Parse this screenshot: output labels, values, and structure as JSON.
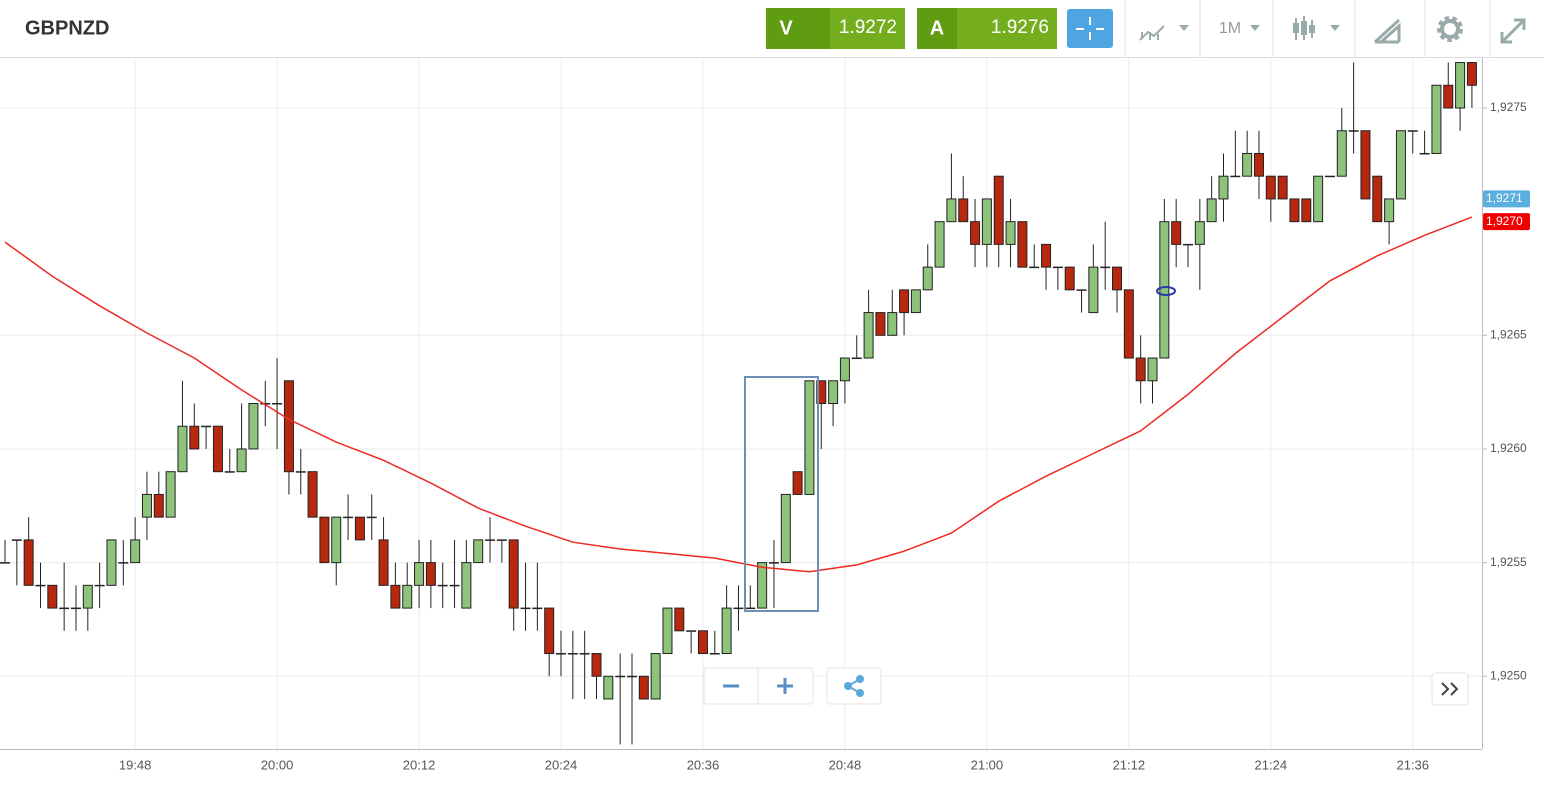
{
  "header": {
    "symbol": "GBPNZD",
    "sell_label": "V",
    "sell_price": "1.9272",
    "buy_label": "A",
    "buy_price": "1.9276",
    "timeframe": "1M"
  },
  "chart_data": {
    "type": "candlestick",
    "categories": [
      null,
      null,
      null,
      null,
      null,
      null,
      null,
      null,
      null,
      null,
      null,
      "19:48",
      null,
      null,
      null,
      null,
      null,
      null,
      null,
      null,
      null,
      null,
      null,
      "20:00",
      null,
      null,
      null,
      null,
      null,
      null,
      null,
      null,
      null,
      null,
      null,
      "20:12",
      null,
      null,
      null,
      null,
      null,
      null,
      null,
      null,
      null,
      null,
      null,
      "20:24",
      null,
      null,
      null,
      null,
      null,
      null,
      null,
      null,
      null,
      null,
      null,
      "20:36",
      null,
      null,
      null,
      null,
      null,
      null,
      null,
      null,
      null,
      null,
      null,
      "20:48",
      null,
      null,
      null,
      null,
      null,
      null,
      null,
      null,
      null,
      null,
      null,
      "21:00",
      null,
      null,
      null,
      null,
      null,
      null,
      null,
      null,
      null,
      null,
      null,
      "21:12",
      null,
      null,
      null,
      null,
      null,
      null,
      null,
      null,
      null,
      null,
      null,
      "21:24",
      null,
      null,
      null,
      null,
      null,
      null,
      null,
      null,
      null,
      null,
      null,
      "21:36",
      null,
      null,
      null,
      null,
      null
    ],
    "open": [
      1.9255,
      1.9256,
      1.9256,
      1.9254,
      1.9254,
      1.9253,
      1.9253,
      1.9253,
      1.9254,
      1.9254,
      1.9255,
      1.9255,
      1.9257,
      1.9258,
      1.9257,
      1.9259,
      1.9261,
      1.9261,
      1.9261,
      1.9259,
      1.9259,
      1.926,
      1.9262,
      1.9262,
      1.9263,
      1.9259,
      1.9259,
      1.9257,
      1.9255,
      1.9257,
      1.9257,
      1.9257,
      1.9256,
      1.9254,
      1.9253,
      1.9254,
      1.9255,
      1.9254,
      1.9254,
      1.9253,
      1.9255,
      1.9256,
      1.9256,
      1.9256,
      1.9253,
      1.9253,
      1.9253,
      1.9251,
      1.9251,
      1.9251,
      1.9251,
      1.9249,
      1.925,
      1.925,
      1.925,
      1.9249,
      1.9251,
      1.9253,
      1.9252,
      1.9252,
      1.9251,
      1.9251,
      1.9253,
      1.9253,
      1.9253,
      1.9255,
      1.9255,
      1.9259,
      1.9258,
      1.9263,
      1.9262,
      1.9263,
      1.9264,
      1.9264,
      1.9266,
      1.9265,
      1.9267,
      1.9266,
      1.9267,
      1.9268,
      1.927,
      1.9271,
      1.927,
      1.9269,
      1.9272,
      1.9269,
      1.927,
      1.9268,
      1.9269,
      1.9268,
      1.9268,
      1.9267,
      1.9266,
      1.9268,
      1.9268,
      1.9267,
      1.9264,
      1.9263,
      1.9264,
      1.927,
      1.9269,
      1.9269,
      1.927,
      1.9271,
      1.9272,
      1.9272,
      1.9273,
      1.9272,
      1.9272,
      1.9271,
      1.9271,
      1.927,
      1.9272,
      1.9272,
      1.9274,
      1.9274,
      1.9272,
      1.927,
      1.9271,
      1.9274,
      1.9273,
      1.9273,
      1.9276,
      1.9275,
      1.9277
    ],
    "high": [
      1.9256,
      1.9256,
      1.9257,
      1.9255,
      1.9254,
      1.9255,
      1.9254,
      1.9254,
      1.9255,
      1.9256,
      1.9256,
      1.9257,
      1.9259,
      1.9259,
      1.9259,
      1.9263,
      1.9262,
      1.9261,
      1.9261,
      1.926,
      1.9262,
      1.9262,
      1.9263,
      1.9264,
      1.9263,
      1.926,
      1.9259,
      1.9257,
      1.9257,
      1.9258,
      1.9257,
      1.9258,
      1.9257,
      1.9255,
      1.9255,
      1.9256,
      1.9256,
      1.9255,
      1.9256,
      1.9256,
      1.9256,
      1.9257,
      1.9256,
      1.9256,
      1.9255,
      1.9255,
      1.9253,
      1.9252,
      1.9252,
      1.9252,
      1.9251,
      1.925,
      1.9251,
      1.9251,
      1.925,
      1.9251,
      1.9253,
      1.9253,
      1.9252,
      1.9252,
      1.9252,
      1.9254,
      1.9254,
      1.9254,
      1.9255,
      1.9256,
      1.9258,
      1.9259,
      1.9263,
      1.9263,
      1.9263,
      1.9264,
      1.9265,
      1.9267,
      1.9266,
      1.9267,
      1.9267,
      1.9267,
      1.9269,
      1.927,
      1.9273,
      1.9272,
      1.9271,
      1.9271,
      1.9272,
      1.9271,
      1.927,
      1.9269,
      1.9269,
      1.9268,
      1.9268,
      1.9267,
      1.9269,
      1.927,
      1.9268,
      1.9267,
      1.9265,
      1.9264,
      1.9271,
      1.9271,
      1.9269,
      1.9271,
      1.9272,
      1.9273,
      1.9274,
      1.9274,
      1.9274,
      1.9272,
      1.9272,
      1.9271,
      1.9271,
      1.9272,
      1.9272,
      1.9275,
      1.9277,
      1.9274,
      1.9272,
      1.9271,
      1.9274,
      1.9274,
      1.9274,
      1.9276,
      1.9277,
      1.9277,
      1.9277
    ],
    "low": [
      1.9255,
      1.9254,
      1.9254,
      1.9253,
      1.9253,
      1.9252,
      1.9252,
      1.9252,
      1.9253,
      1.9254,
      1.9254,
      1.9255,
      1.9256,
      1.9257,
      1.9257,
      1.9259,
      1.926,
      1.926,
      1.9259,
      1.9259,
      1.9259,
      1.926,
      1.9261,
      1.926,
      1.9258,
      1.9258,
      1.9257,
      1.9255,
      1.9254,
      1.9256,
      1.9256,
      1.9256,
      1.9254,
      1.9253,
      1.9253,
      1.9253,
      1.9253,
      1.9253,
      1.9253,
      1.9253,
      1.9255,
      1.9255,
      1.9255,
      1.9252,
      1.9252,
      1.9252,
      1.925,
      1.925,
      1.9249,
      1.9249,
      1.9249,
      1.9249,
      1.9247,
      1.9247,
      1.9249,
      1.9249,
      1.9251,
      1.9252,
      1.9251,
      1.9251,
      1.9251,
      1.9251,
      1.9252,
      1.9253,
      1.9253,
      1.9253,
      1.9255,
      1.9258,
      1.9258,
      1.926,
      1.9261,
      1.9262,
      1.9264,
      1.9264,
      1.9265,
      1.9265,
      1.9265,
      1.9266,
      1.9267,
      1.9268,
      1.927,
      1.927,
      1.9268,
      1.9268,
      1.9268,
      1.9268,
      1.9268,
      1.9268,
      1.9267,
      1.9267,
      1.9267,
      1.9266,
      1.9266,
      1.9267,
      1.9266,
      1.9264,
      1.9262,
      1.9262,
      1.9264,
      1.9268,
      1.9268,
      1.9267,
      1.927,
      1.927,
      1.9272,
      1.9272,
      1.9271,
      1.927,
      1.9271,
      1.927,
      1.927,
      1.927,
      1.9272,
      1.9272,
      1.9273,
      1.9271,
      1.927,
      1.9269,
      1.9271,
      1.9273,
      1.9273,
      1.9273,
      1.9275,
      1.9274,
      1.9275
    ],
    "close": [
      1.9255,
      1.9256,
      1.9254,
      1.9254,
      1.9253,
      1.9253,
      1.9253,
      1.9254,
      1.9254,
      1.9256,
      1.9255,
      1.9256,
      1.9258,
      1.9257,
      1.9259,
      1.9261,
      1.926,
      1.9261,
      1.9259,
      1.9259,
      1.926,
      1.9262,
      1.9262,
      1.9262,
      1.9259,
      1.9259,
      1.9257,
      1.9255,
      1.9257,
      1.9257,
      1.9256,
      1.9257,
      1.9254,
      1.9253,
      1.9254,
      1.9255,
      1.9254,
      1.9254,
      1.9254,
      1.9255,
      1.9256,
      1.9256,
      1.9256,
      1.9253,
      1.9253,
      1.9253,
      1.9251,
      1.9251,
      1.9251,
      1.9251,
      1.925,
      1.925,
      1.925,
      1.925,
      1.9249,
      1.9251,
      1.9253,
      1.9252,
      1.9252,
      1.9251,
      1.9251,
      1.9253,
      1.9253,
      1.9253,
      1.9255,
      1.9255,
      1.9258,
      1.9258,
      1.9263,
      1.9262,
      1.9263,
      1.9264,
      1.9264,
      1.9266,
      1.9265,
      1.9266,
      1.9266,
      1.9267,
      1.9268,
      1.927,
      1.9271,
      1.927,
      1.9269,
      1.9271,
      1.9269,
      1.927,
      1.9268,
      1.9268,
      1.9268,
      1.9268,
      1.9267,
      1.9267,
      1.9268,
      1.9268,
      1.9267,
      1.9264,
      1.9263,
      1.9264,
      1.927,
      1.9269,
      1.9269,
      1.927,
      1.9271,
      1.9272,
      1.9272,
      1.9273,
      1.9272,
      1.9271,
      1.9271,
      1.927,
      1.927,
      1.9272,
      1.9272,
      1.9274,
      1.9274,
      1.9271,
      1.927,
      1.9271,
      1.9274,
      1.9274,
      1.9273,
      1.9276,
      1.9275,
      1.9277,
      1.9276
    ],
    "up_color": "#8dc37b",
    "down_color": "#b8280f",
    "overlay": {
      "color": "#ee2a22",
      "x": [
        0,
        4,
        8,
        12,
        16,
        20,
        24,
        28,
        32,
        36,
        40,
        44,
        48,
        52,
        56,
        60,
        64,
        68,
        72,
        76,
        80,
        84,
        88,
        92,
        96,
        100,
        104,
        108,
        112,
        116,
        120,
        124
      ],
      "values": [
        1.92691,
        1.92676,
        1.92663,
        1.92651,
        1.9264,
        1.92626,
        1.92613,
        1.92603,
        1.92595,
        1.92585,
        1.92574,
        1.92566,
        1.92559,
        1.92556,
        1.92554,
        1.92552,
        1.92548,
        1.92546,
        1.92549,
        1.92555,
        1.92563,
        1.92577,
        1.92588,
        1.92598,
        1.92608,
        1.92624,
        1.92642,
        1.92658,
        1.92674,
        1.92685,
        1.92694,
        1.92702
      ]
    },
    "ylim": [
      1.92468,
      1.92772
    ],
    "yticks": [
      {
        "value": 1.925,
        "label": "1,9250"
      },
      {
        "value": 1.9255,
        "label": "1,9255"
      },
      {
        "value": 1.926,
        "label": "1,9260"
      },
      {
        "value": 1.9265,
        "label": "1,9265"
      },
      {
        "value": 1.9275,
        "label": "1,9275"
      }
    ],
    "grid": true,
    "price_markers": [
      {
        "value": 1.9271,
        "label": "1,9271",
        "color": "#5bb0de"
      },
      {
        "value": 1.927,
        "label": "1,9270",
        "color": "#f00000"
      }
    ]
  }
}
